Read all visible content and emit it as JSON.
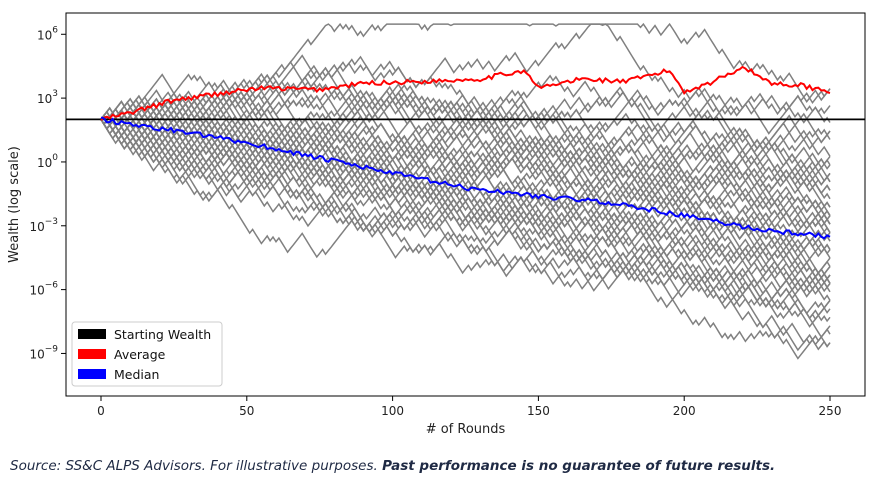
{
  "chart_data": {
    "type": "line",
    "xlabel": "# of Rounds",
    "ylabel": "Wealth (log scale)",
    "y_scale": "log",
    "xlim": [
      -12,
      262
    ],
    "ylim": [
      1e-11,
      10000000.0
    ],
    "x_ticks": [
      0,
      50,
      100,
      150,
      200,
      250
    ],
    "x_tick_labels": [
      "0",
      "50",
      "100",
      "150",
      "200",
      "250"
    ],
    "y_ticks": [
      1e-09,
      1e-06,
      0.001,
      1,
      1000,
      1000000
    ],
    "y_tick_labels": [
      {
        "base": "10",
        "exp": "−9"
      },
      {
        "base": "10",
        "exp": "−6"
      },
      {
        "base": "10",
        "exp": "−3"
      },
      {
        "base": "10",
        "exp": "0"
      },
      {
        "base": "10",
        "exp": "3"
      },
      {
        "base": "10",
        "exp": "6"
      }
    ],
    "starting_wealth": 100,
    "rounds": 250,
    "legend": {
      "position": "lower-left",
      "entries": [
        {
          "label": "Starting Wealth",
          "color": "#000000"
        },
        {
          "label": "Average",
          "color": "#ff0000"
        },
        {
          "label": "Median",
          "color": "#0000ff"
        }
      ]
    },
    "series": [
      {
        "name": "Average",
        "color": "#ff0000",
        "x": [
          0,
          10,
          25,
          45,
          55,
          75,
          90,
          110,
          130,
          145,
          150,
          165,
          180,
          195,
          200,
          210,
          220,
          230,
          240,
          250
        ],
        "y": [
          100,
          200,
          800,
          2000,
          3000,
          2500,
          5000,
          6000,
          8000,
          20000,
          3000,
          8000,
          6000,
          20000,
          2000,
          6000,
          30000,
          5000,
          4000,
          2000
        ]
      },
      {
        "name": "Median",
        "color": "#0000ff",
        "x": [
          0,
          25,
          50,
          75,
          100,
          125,
          150,
          175,
          200,
          225,
          250
        ],
        "y": [
          100,
          30,
          8,
          1.5,
          0.3,
          0.06,
          0.025,
          0.012,
          0.003,
          0.0007,
          0.0003
        ]
      }
    ],
    "simulated_paths": {
      "color": "#808080",
      "count": 60
    }
  },
  "footnote": {
    "text": "Source: SS&C ALPS Advisors. For illustrative purposes. ",
    "bold": "Past performance is no guarantee of future results."
  }
}
